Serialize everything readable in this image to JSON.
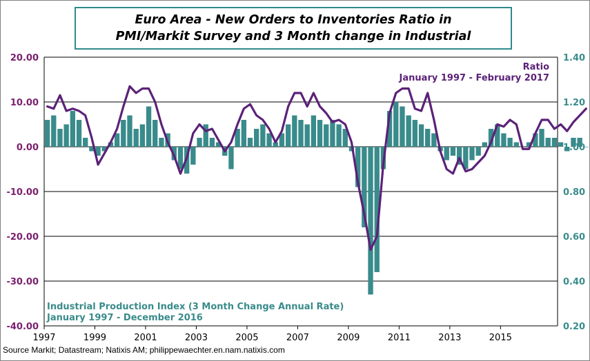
{
  "title": {
    "line1": "Euro Area - New Orders to Inventories Ratio in",
    "line2": "PMI/Markit Survey and 3 Month change in Industrial"
  },
  "source": "Source Markit; Datastream; Natixis AM; philippewaechter.en.nam.natixis.com",
  "colors": {
    "ratio": "#5b2178",
    "bars": "#3a8b8b",
    "left_axis": "#7a1f6e",
    "right_axis": "#3a8b8b",
    "title_border": "#2f8a8a"
  },
  "chart_data": {
    "type": "bar+line",
    "title": "Euro Area - New Orders to Inventories Ratio in PMI/Markit Survey and 3 Month change in Industrial",
    "x_ticks": [
      "1997",
      "1999",
      "2001",
      "2003",
      "2005",
      "2007",
      "2009",
      "2011",
      "2013",
      "2015"
    ],
    "left_axis": {
      "ylim": [
        -40,
        20
      ],
      "ticks": [
        "20.00",
        "10.00",
        "0.00",
        "-10.00",
        "-20.00",
        "-30.00",
        "-40.00"
      ]
    },
    "right_axis": {
      "ylim": [
        0.2,
        1.4
      ],
      "ticks": [
        "1.40",
        "1.20",
        "1.00",
        "0.80",
        "0.60",
        "0.40",
        "0.20"
      ]
    },
    "legend": {
      "ratio_name": "Ratio",
      "ratio_period": "January 1997 - February 2017",
      "bars_name": "Industrial Production Index (3 Month Change Annual Rate)",
      "bars_period": "January 1997 - December 2016"
    },
    "series": [
      {
        "name": "Ratio",
        "axis": "right",
        "style": "line",
        "start": "1997-01",
        "frequency": "quarterly",
        "values": [
          1.18,
          1.17,
          1.23,
          1.16,
          1.17,
          1.16,
          1.14,
          1.04,
          0.92,
          0.97,
          1.02,
          1.08,
          1.18,
          1.27,
          1.24,
          1.26,
          1.26,
          1.2,
          1.1,
          1.02,
          0.96,
          0.88,
          0.95,
          1.06,
          1.1,
          1.07,
          1.08,
          1.03,
          0.98,
          1.02,
          1.1,
          1.17,
          1.19,
          1.14,
          1.12,
          1.08,
          1.02,
          1.07,
          1.18,
          1.24,
          1.24,
          1.18,
          1.24,
          1.18,
          1.15,
          1.11,
          1.12,
          1.1,
          1.02,
          0.84,
          0.7,
          0.54,
          0.6,
          0.92,
          1.15,
          1.24,
          1.26,
          1.26,
          1.17,
          1.16,
          1.24,
          1.12,
          0.98,
          0.9,
          0.88,
          0.95,
          0.89,
          0.9,
          0.93,
          0.96,
          1.02,
          1.1,
          1.09,
          1.12,
          1.1,
          0.99,
          0.99,
          1.06,
          1.12,
          1.12,
          1.08,
          1.1,
          1.07,
          1.11,
          1.14,
          1.17
        ]
      },
      {
        "name": "Industrial Production Index (3 Month Change Annual Rate)",
        "axis": "left",
        "style": "bar",
        "start": "1997-01",
        "frequency": "quarterly",
        "values": [
          6,
          7,
          4,
          5,
          8,
          6,
          2,
          -1,
          -2,
          -1,
          1,
          3,
          6,
          7,
          4,
          5,
          9,
          6,
          2,
          3,
          -3,
          -5,
          -6,
          -4,
          2,
          5,
          2,
          1,
          -2,
          -5,
          4,
          6,
          2,
          4,
          5,
          3,
          1,
          3,
          5,
          7,
          6,
          5,
          7,
          6,
          5,
          6,
          5,
          4,
          -1,
          -9,
          -18,
          -33,
          -28,
          -5,
          8,
          10,
          9,
          7,
          6,
          5,
          4,
          3,
          -1,
          -3,
          -2,
          -4,
          -5,
          -3,
          -2,
          1,
          4,
          5,
          3,
          2,
          1,
          0,
          1,
          3,
          4,
          2,
          2,
          1,
          -1,
          2,
          2,
          0
        ]
      }
    ]
  }
}
